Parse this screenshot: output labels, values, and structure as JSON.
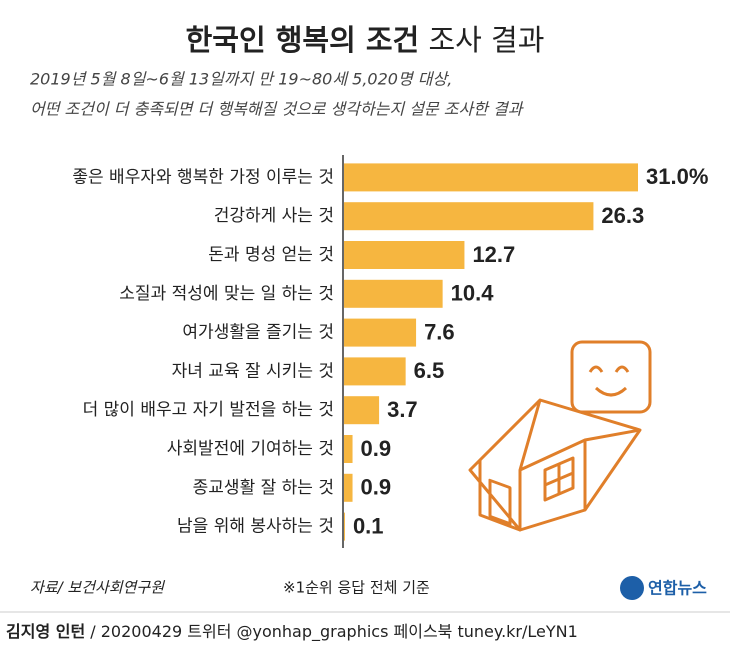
{
  "chart_data": {
    "type": "hbar",
    "title": {
      "main": "한국인 행복의 조건",
      "rest": "조사 결과"
    },
    "subtitle": [
      "2019년 5월 8일~6월 13일까지 만 19~80세 5,020명 대상,",
      "어떤 조건이 더 충족되면 더 행복해질 것으로 생각하는지 설문 조사한 결과"
    ],
    "categories": [
      "좋은 배우자와 행복한 가정 이루는 것",
      "건강하게 사는 것",
      "돈과 명성 얻는 것",
      "소질과 적성에 맞는 일 하는 것",
      "여가생활을 즐기는 것",
      "자녀 교육 잘 시키는 것",
      "더 많이 배우고 자기 발전을 하는 것",
      "사회발전에 기여하는 것",
      "종교생활 잘 하는 것",
      "남을 위해 봉사하는 것"
    ],
    "values": [
      31.0,
      26.3,
      12.7,
      10.4,
      7.6,
      6.5,
      3.7,
      0.9,
      0.9,
      0.1
    ],
    "value_labels": [
      "31.0%",
      "26.3",
      "12.7",
      "10.4",
      "7.6",
      "6.5",
      "3.7",
      "0.9",
      "0.9",
      "0.1"
    ],
    "color": "#f6b640",
    "source": "자료/ 보건사회연구원",
    "note": "※1순위 응답 전체 기준",
    "logo": "연합뉴스",
    "credit": {
      "author": "김지영 인턴",
      "rest": "/ 20200429 트위터 @yonhap_graphics  페이스북 tuney.kr/LeYN1"
    }
  }
}
